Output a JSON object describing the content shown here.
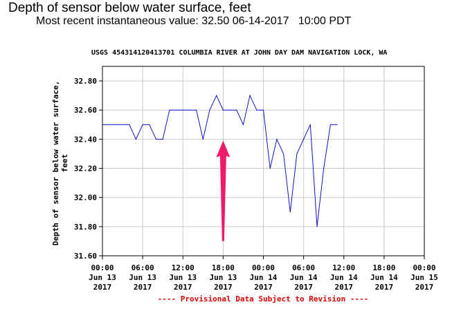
{
  "header": {
    "title": "Depth of sensor below water surface, feet",
    "subtitle": "Most recent instantaneous value: 32.50 06-14-2017   10:00 PDT"
  },
  "chart_data": {
    "type": "line",
    "title": "USGS 454314120413701 COLUMBIA RIVER AT JOHN DAY DAM NAVIGATION LOCK, WA",
    "ylabel_line1": "Depth of sensor below water surface,",
    "ylabel_line2": "feet",
    "ylim": [
      31.6,
      32.9
    ],
    "yticks": [
      31.6,
      31.8,
      32.0,
      32.2,
      32.4,
      32.6,
      32.8
    ],
    "ytick_labels": [
      "31.60",
      "31.80",
      "32.00",
      "32.20",
      "32.40",
      "32.60",
      "32.80"
    ],
    "xlim_hours": [
      0,
      48
    ],
    "xticks": [
      {
        "h": 0,
        "time": "00:00",
        "day": "Jun 13",
        "year": "2017"
      },
      {
        "h": 6,
        "time": "06:00",
        "day": "Jun 13",
        "year": "2017"
      },
      {
        "h": 12,
        "time": "12:00",
        "day": "Jun 13",
        "year": "2017"
      },
      {
        "h": 18,
        "time": "18:00",
        "day": "Jun 13",
        "year": "2017"
      },
      {
        "h": 24,
        "time": "00:00",
        "day": "Jun 14",
        "year": "2017"
      },
      {
        "h": 30,
        "time": "06:00",
        "day": "Jun 14",
        "year": "2017"
      },
      {
        "h": 36,
        "time": "12:00",
        "day": "Jun 14",
        "year": "2017"
      },
      {
        "h": 42,
        "time": "18:00",
        "day": "Jun 14",
        "year": "2017"
      },
      {
        "h": 48,
        "time": "00:00",
        "day": "Jun 15",
        "year": "2017"
      }
    ],
    "grid": true,
    "series": [
      {
        "color": "#1010c8",
        "x": [
          0,
          4,
          5,
          6,
          7,
          8,
          9,
          10,
          11,
          12,
          13,
          14,
          15,
          16,
          17,
          18,
          19,
          20,
          21,
          22,
          23,
          24,
          25,
          26,
          27,
          28,
          29,
          30,
          31,
          32,
          33,
          34,
          35
        ],
        "y": [
          32.5,
          32.5,
          32.4,
          32.5,
          32.5,
          32.4,
          32.4,
          32.6,
          32.6,
          32.6,
          32.6,
          32.6,
          32.4,
          32.6,
          32.7,
          32.6,
          32.6,
          32.6,
          32.5,
          32.7,
          32.6,
          32.6,
          32.2,
          32.4,
          32.3,
          31.9,
          32.3,
          32.4,
          32.5,
          31.8,
          32.2,
          32.5,
          32.5
        ]
      }
    ],
    "annotation_arrow": {
      "color": "#f0196a",
      "x_hours": 18,
      "y_from": 31.7,
      "y_to": 32.39
    },
    "footer_text": "---- Provisional Data Subject to Revision ----",
    "footer_color": "#dd0000"
  }
}
